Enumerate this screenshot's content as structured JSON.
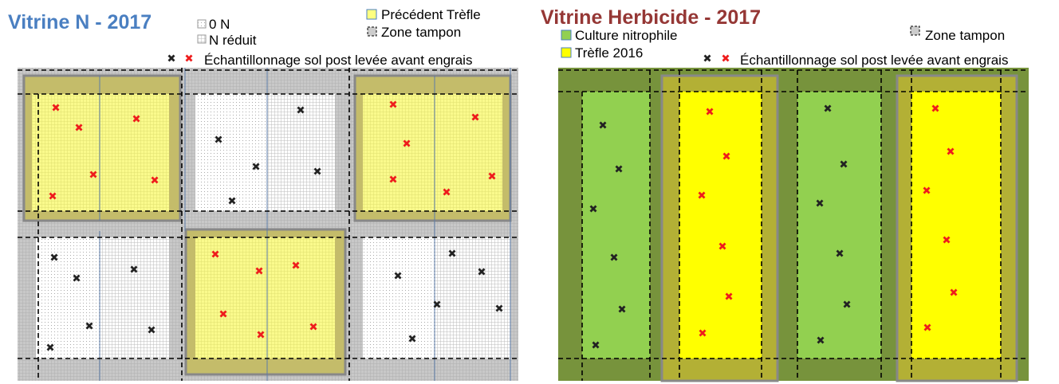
{
  "left": {
    "title": "Vitrine N - 2017",
    "legend": {
      "zero_n": "0 N",
      "n_reduit": "N réduit",
      "precedent": "Précédent Trèfle",
      "zone": "Zone tampon",
      "echantillonnage": "Échantillonnage sol post levée avant engrais"
    }
  },
  "right": {
    "title": "Vitrine Herbicide - 2017",
    "legend": {
      "culture": "Culture nitrophile",
      "trefle": "Trèfle 2016",
      "zone": "Zone tampon",
      "echantillonnage": "Échantillonnage sol post levée avant engrais"
    }
  }
}
